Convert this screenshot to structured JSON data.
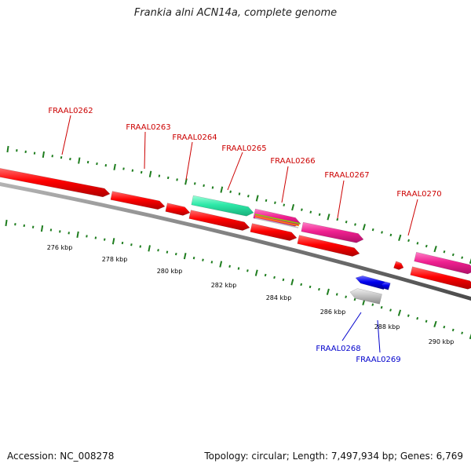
{
  "title": "Frankia alni ACN14a, complete genome",
  "accession_text": "Accession: NC_008278",
  "topology_text": "Topology: circular; Length: 7,497,934 bp; Genes: 6,769",
  "colors": {
    "forward_label": "#cc0000",
    "reverse_label": "#0000cc",
    "tick": "#1e7d1e",
    "backbone": "#7a7a7a",
    "gene_red": "#ff0000",
    "gene_magenta": "#f02090",
    "gene_teal": "#2ee8a8",
    "gene_blue": "#0000ee",
    "gene_grey": "#c0c0c0"
  },
  "scale_labels": [
    "276 kbp",
    "278 kbp",
    "280 kbp",
    "282 kbp",
    "284 kbp",
    "286 kbp",
    "288 kbp",
    "290 kbp"
  ],
  "forward_gene_labels": [
    "FRAAL0262",
    "FRAAL0263",
    "FRAAL0264",
    "FRAAL0265",
    "FRAAL0266",
    "FRAAL0267",
    "FRAAL0270"
  ],
  "reverse_gene_labels": [
    "FRAAL0268",
    "FRAAL0269"
  ]
}
